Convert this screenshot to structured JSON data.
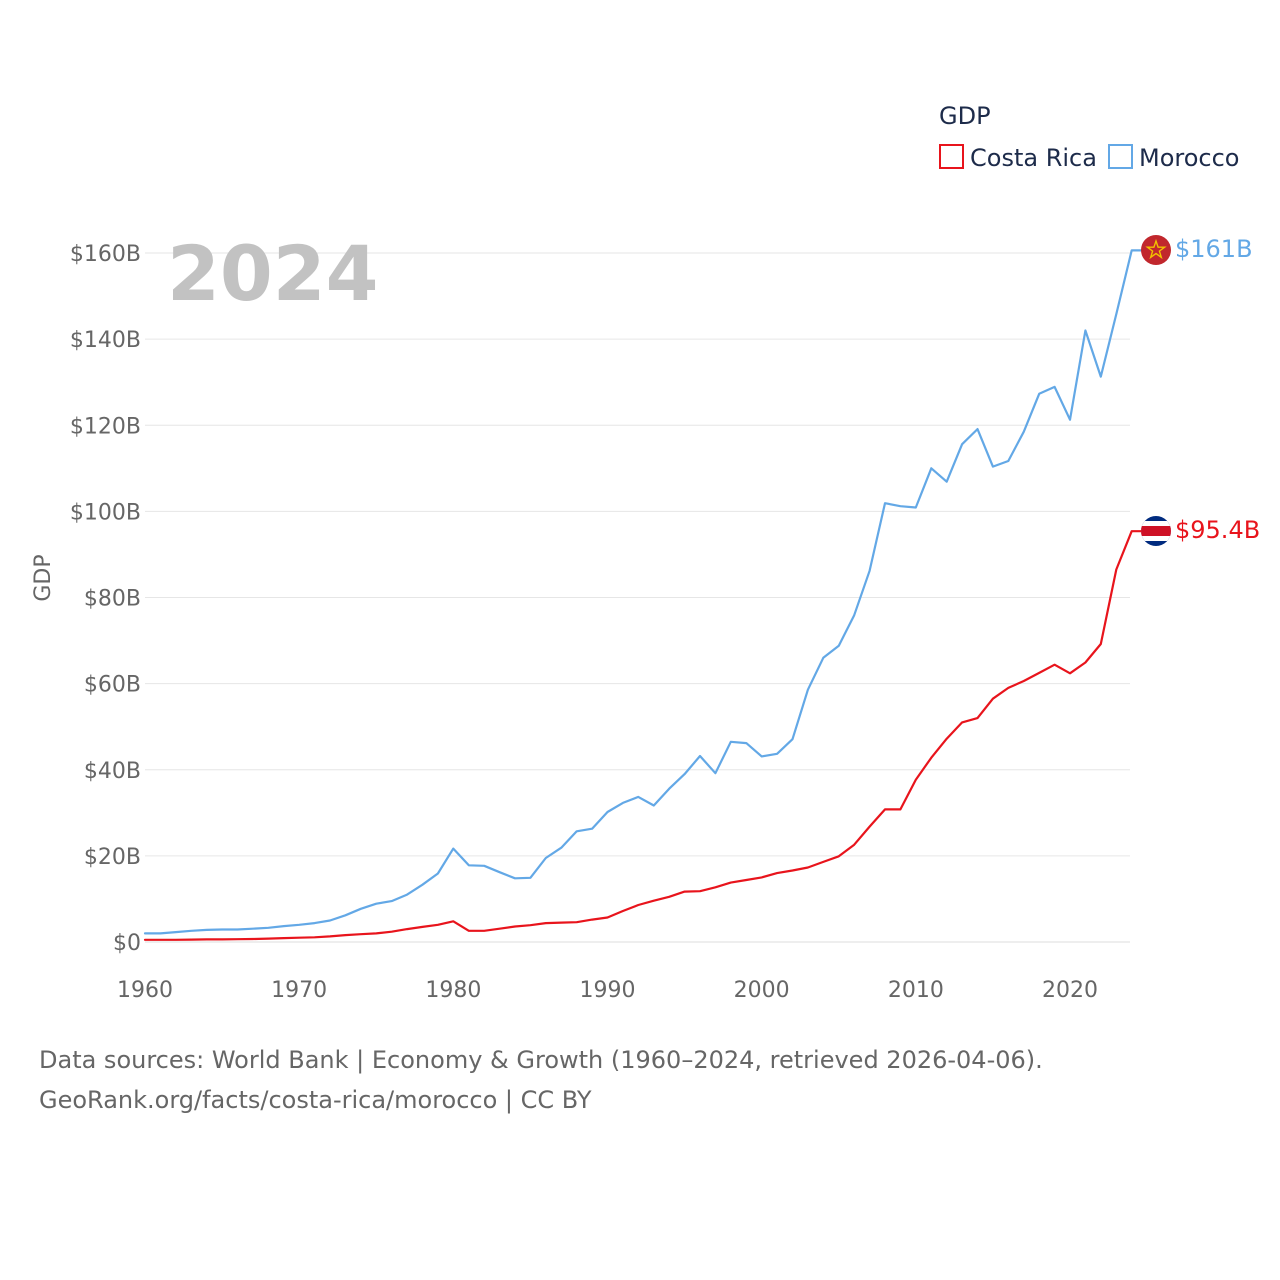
{
  "chart_data": {
    "type": "line",
    "legend_title": "GDP",
    "ylabel": "GDP",
    "xlabel": "",
    "current_year_label": "2024",
    "xlim": [
      1960,
      2024
    ],
    "ylim": [
      0,
      160
    ],
    "y_unit": "billion USD",
    "x_ticks": [
      1960,
      1970,
      1980,
      1990,
      2000,
      2010,
      2020
    ],
    "y_ticks": [
      0,
      20,
      40,
      60,
      80,
      100,
      120,
      140,
      160
    ],
    "y_tick_labels": [
      "$0",
      "$20B",
      "$40B",
      "$60B",
      "$80B",
      "$100B",
      "$120B",
      "$140B",
      "$160B"
    ],
    "grid": true,
    "legend_position": "top-right",
    "x": [
      1960,
      1961,
      1962,
      1963,
      1964,
      1965,
      1966,
      1967,
      1968,
      1969,
      1970,
      1971,
      1972,
      1973,
      1974,
      1975,
      1976,
      1977,
      1978,
      1979,
      1980,
      1981,
      1982,
      1983,
      1984,
      1985,
      1986,
      1987,
      1988,
      1989,
      1990,
      1991,
      1992,
      1993,
      1994,
      1995,
      1996,
      1997,
      1998,
      1999,
      2000,
      2001,
      2002,
      2003,
      2004,
      2005,
      2006,
      2007,
      2008,
      2009,
      2010,
      2011,
      2012,
      2013,
      2014,
      2015,
      2016,
      2017,
      2018,
      2019,
      2020,
      2021,
      2022,
      2023,
      2024
    ],
    "series": [
      {
        "name": "Costa Rica",
        "color": "#e8141c",
        "end_label": "$95.4B",
        "flag": "costa-rica-flag",
        "values": [
          0.5,
          0.5,
          0.5,
          0.55,
          0.6,
          0.6,
          0.65,
          0.7,
          0.8,
          0.9,
          1.0,
          1.1,
          1.3,
          1.6,
          1.8,
          2.0,
          2.4,
          3.0,
          3.5,
          4.0,
          4.8,
          2.6,
          2.6,
          3.1,
          3.6,
          3.9,
          4.4,
          4.5,
          4.6,
          5.2,
          5.7,
          7.2,
          8.6,
          9.6,
          10.5,
          11.7,
          11.8,
          12.7,
          13.8,
          14.4,
          15.0,
          16.0,
          16.6,
          17.3,
          18.6,
          19.9,
          22.6,
          26.8,
          30.8,
          30.8,
          37.7,
          42.8,
          47.2,
          51.0,
          52.0,
          56.5,
          59.0,
          60.6,
          62.5,
          64.4,
          62.4,
          64.9,
          69.2,
          86.5,
          95.4
        ]
      },
      {
        "name": "Morocco",
        "color": "#63a8e6",
        "end_label": "$161B",
        "flag": "morocco-flag",
        "values": [
          2.0,
          2.0,
          2.3,
          2.6,
          2.8,
          2.9,
          2.9,
          3.1,
          3.3,
          3.7,
          4.0,
          4.4,
          5.0,
          6.2,
          7.7,
          8.9,
          9.5,
          11.0,
          13.3,
          15.9,
          21.7,
          17.8,
          17.7,
          16.2,
          14.8,
          14.9,
          19.5,
          21.9,
          25.7,
          26.3,
          30.2,
          32.3,
          33.7,
          31.7,
          35.6,
          39.0,
          43.2,
          39.2,
          46.5,
          46.2,
          43.1,
          43.7,
          47.1,
          58.6,
          66.0,
          68.8,
          75.9,
          86.2,
          101.9,
          101.2,
          100.9,
          110.0,
          106.9,
          115.6,
          119.1,
          110.4,
          111.7,
          118.5,
          127.3,
          128.9,
          121.3,
          142.0,
          131.3,
          145.8,
          160.6
        ]
      }
    ]
  },
  "footer": {
    "line1": "Data sources: World Bank | Economy & Growth (1960–2024, retrieved 2026-04-06).",
    "line2": "GeoRank.org/facts/costa-rica/morocco | CC BY"
  }
}
